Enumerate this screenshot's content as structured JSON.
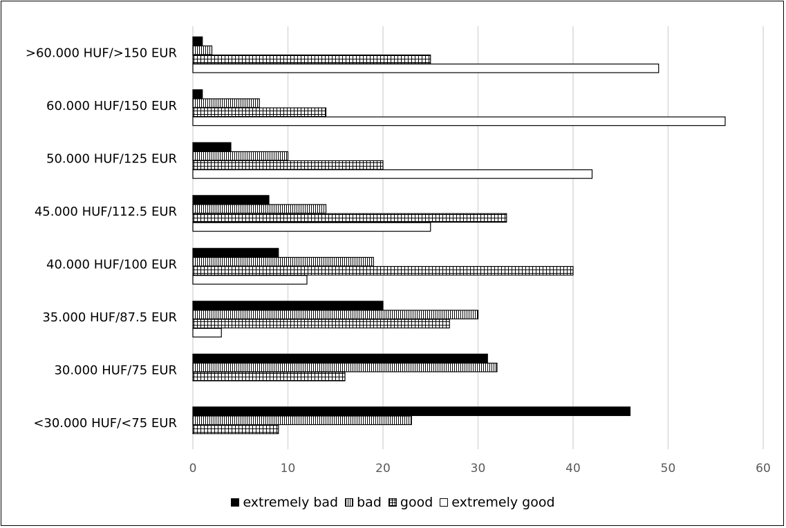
{
  "chart_data": {
    "type": "bar",
    "orientation": "horizontal",
    "categories": [
      ">60.000 HUF/>150 EUR",
      "60.000 HUF/150 EUR",
      "50.000 HUF/125 EUR",
      "45.000 HUF/112.5 EUR",
      "40.000 HUF/100 EUR",
      "35.000 HUF/87.5 EUR",
      "30.000 HUF/75 EUR",
      "<30.000 HUF/<75 EUR"
    ],
    "series": [
      {
        "name": "extremely bad",
        "pattern": "solid",
        "values": [
          1,
          1,
          4,
          8,
          9,
          20,
          31,
          46
        ]
      },
      {
        "name": "bad",
        "pattern": "vertical-lines",
        "values": [
          2,
          7,
          10,
          14,
          19,
          30,
          32,
          23
        ]
      },
      {
        "name": "good",
        "pattern": "grid",
        "values": [
          25,
          14,
          20,
          33,
          40,
          27,
          16,
          9
        ]
      },
      {
        "name": "extremely good",
        "pattern": "empty",
        "values": [
          49,
          56,
          42,
          25,
          12,
          3,
          0,
          0
        ]
      }
    ],
    "xlim": [
      0,
      60
    ],
    "xticks": [
      "0",
      "10",
      "20",
      "30",
      "40",
      "50",
      "60"
    ],
    "grid": true,
    "legend_position": "bottom",
    "title": "",
    "xlabel": "",
    "ylabel": ""
  }
}
